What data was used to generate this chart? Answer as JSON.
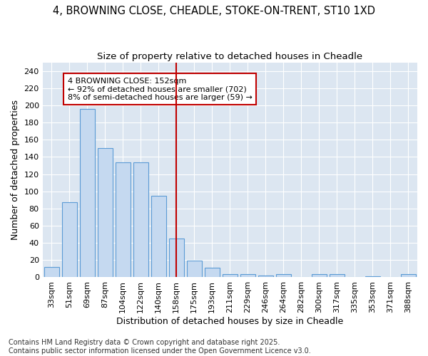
{
  "title_line1": "4, BROWNING CLOSE, CHEADLE, STOKE-ON-TRENT, ST10 1XD",
  "title_line2": "Size of property relative to detached houses in Cheadle",
  "xlabel": "Distribution of detached houses by size in Cheadle",
  "ylabel": "Number of detached properties",
  "categories": [
    "33sqm",
    "51sqm",
    "69sqm",
    "87sqm",
    "104sqm",
    "122sqm",
    "140sqm",
    "158sqm",
    "175sqm",
    "193sqm",
    "211sqm",
    "229sqm",
    "246sqm",
    "264sqm",
    "282sqm",
    "300sqm",
    "317sqm",
    "335sqm",
    "353sqm",
    "371sqm",
    "388sqm"
  ],
  "values": [
    12,
    87,
    196,
    150,
    134,
    134,
    95,
    45,
    19,
    11,
    3,
    3,
    2,
    3,
    0,
    3,
    3,
    0,
    1,
    0,
    3
  ],
  "bar_color": "#c5d9f0",
  "bar_edge_color": "#5b9bd5",
  "vline_x_index": 7,
  "vline_color": "#c00000",
  "annotation_text": "4 BROWNING CLOSE: 152sqm\n← 92% of detached houses are smaller (702)\n8% of semi-detached houses are larger (59) →",
  "annotation_box_color": "#c00000",
  "ylim": [
    0,
    250
  ],
  "yticks": [
    0,
    20,
    40,
    60,
    80,
    100,
    120,
    140,
    160,
    180,
    200,
    220,
    240
  ],
  "background_color": "#dce6f1",
  "grid_color": "#ffffff",
  "footer": "Contains HM Land Registry data © Crown copyright and database right 2025.\nContains public sector information licensed under the Open Government Licence v3.0.",
  "title_fontsize": 10.5,
  "subtitle_fontsize": 9.5,
  "axis_label_fontsize": 9,
  "tick_fontsize": 8,
  "annotation_fontsize": 8,
  "footer_fontsize": 7
}
